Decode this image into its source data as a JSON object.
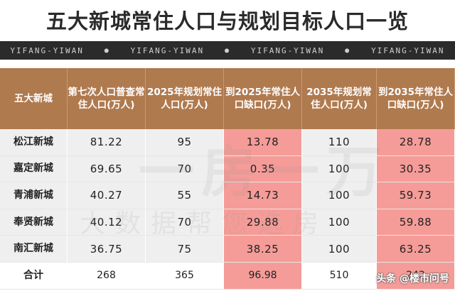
{
  "title": "五大新城常住人口与规划目标人口一览",
  "band": [
    "YIFANG-YIWAN",
    "YIFANG-YIWAN",
    "YIFANG-YIWAN",
    "YIFANG-YIWAN"
  ],
  "watermark": {
    "line1": "一房一万",
    "line2": "大数据帮您选房"
  },
  "credit": "头条 @楼市问号",
  "table": {
    "headers": [
      "五大新城",
      "第七次人口普查常住人口(万人)",
      "2025年规划常住人口(万人)",
      "到2025年常住人口缺口(万人)",
      "2035年规划常住人口(万人)",
      "到2035年常住人口缺口(万人)"
    ],
    "rows": [
      [
        "松江新城",
        "81.22",
        "95",
        "13.78",
        "110",
        "28.78"
      ],
      [
        "嘉定新城",
        "69.65",
        "70",
        "0.35",
        "100",
        "30.35"
      ],
      [
        "青浦新城",
        "40.27",
        "55",
        "14.73",
        "100",
        "59.73"
      ],
      [
        "奉贤新城",
        "40.12",
        "70",
        "29.88",
        "100",
        "59.88"
      ],
      [
        "南汇新城",
        "36.75",
        "75",
        "38.25",
        "100",
        "63.25"
      ],
      [
        "合计",
        "268",
        "365",
        "96.98",
        "510",
        "242"
      ]
    ]
  },
  "colors": {
    "header": "#b07a4f",
    "gap_highlight": "#f59c98",
    "row_bg": "#efefef",
    "band": "#2b2b2b"
  }
}
